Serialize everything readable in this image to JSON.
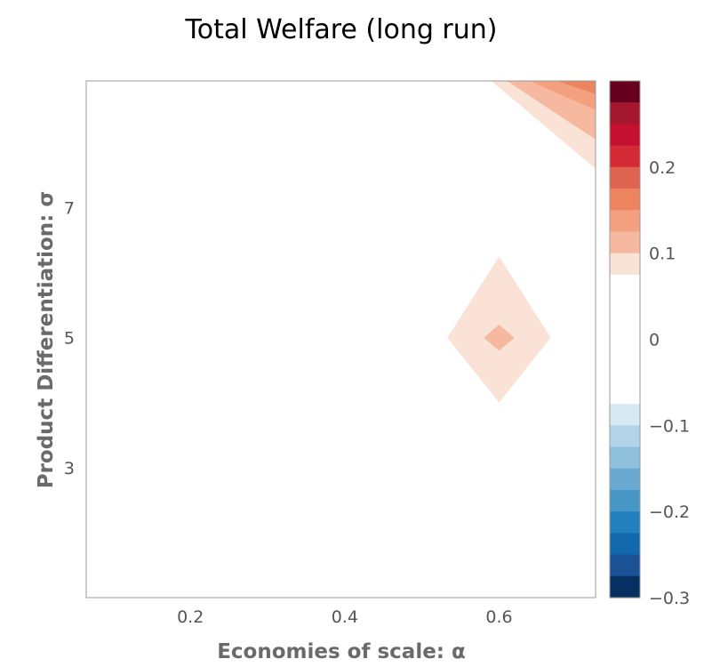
{
  "chart_data": {
    "type": "heatmap",
    "title": "Total Welfare (long run)",
    "xlabel": "Economies of scale: α",
    "ylabel": "Product Differentiation: σ",
    "xlim": [
      0.065,
      0.725
    ],
    "ylim": [
      1.0,
      8.95
    ],
    "x_ticks": [
      "0.2",
      "0.4",
      "0.6"
    ],
    "y_ticks": [
      "3",
      "5",
      "7"
    ],
    "x_tick_values": [
      0.2,
      0.4,
      0.6
    ],
    "y_tick_values": [
      3,
      5,
      7
    ],
    "colorbar": {
      "range": [
        -0.3,
        0.3
      ],
      "tick_labels": [
        "0.2",
        "0.1",
        "0",
        "−0.1",
        "−0.2",
        "−0.3"
      ],
      "tick_values": [
        0.2,
        0.1,
        0,
        -0.1,
        -0.2,
        -0.3
      ],
      "levels": [
        {
          "lo": 0.275,
          "hi": 0.3,
          "color": "#67001f"
        },
        {
          "lo": 0.25,
          "hi": 0.275,
          "color": "#a5172f"
        },
        {
          "lo": 0.225,
          "hi": 0.25,
          "color": "#c5112f"
        },
        {
          "lo": 0.2,
          "hi": 0.225,
          "color": "#d42a35"
        },
        {
          "lo": 0.175,
          "hi": 0.2,
          "color": "#df6450"
        },
        {
          "lo": 0.15,
          "hi": 0.175,
          "color": "#ed8460"
        },
        {
          "lo": 0.125,
          "hi": 0.15,
          "color": "#f3a07f"
        },
        {
          "lo": 0.1,
          "hi": 0.125,
          "color": "#f6b89e"
        },
        {
          "lo": 0.075,
          "hi": 0.1,
          "color": "#fbe2d7"
        },
        {
          "lo": -0.075,
          "hi": 0.075,
          "color": "#ffffff"
        },
        {
          "lo": -0.1,
          "hi": -0.075,
          "color": "#d7e9f3"
        },
        {
          "lo": -0.125,
          "hi": -0.1,
          "color": "#b1d4e8"
        },
        {
          "lo": -0.15,
          "hi": -0.125,
          "color": "#8cc0dc"
        },
        {
          "lo": -0.175,
          "hi": -0.15,
          "color": "#6aaad2"
        },
        {
          "lo": -0.2,
          "hi": -0.175,
          "color": "#4696c6"
        },
        {
          "lo": -0.225,
          "hi": -0.2,
          "color": "#2180bd"
        },
        {
          "lo": -0.25,
          "hi": -0.225,
          "color": "#1268ac"
        },
        {
          "lo": -0.275,
          "hi": -0.25,
          "color": "#1b5295"
        },
        {
          "lo": -0.3,
          "hi": -0.275,
          "color": "#053061"
        }
      ]
    },
    "grid": false,
    "regions": [
      {
        "shape": "polygon",
        "color": "#fbe2d7",
        "points": [
          [
            0.6,
            6.25
          ],
          [
            0.667,
            5.0
          ],
          [
            0.6,
            4.0
          ],
          [
            0.533,
            5.0
          ]
        ]
      },
      {
        "shape": "polygon",
        "color": "#f6b89e",
        "points": [
          [
            0.6,
            5.2
          ],
          [
            0.62,
            5.0
          ],
          [
            0.6,
            4.8
          ],
          [
            0.58,
            5.0
          ]
        ]
      },
      {
        "shape": "polygon",
        "color": "#fbe2d7",
        "points": [
          [
            0.59,
            8.95
          ],
          [
            0.725,
            8.95
          ],
          [
            0.725,
            7.6
          ]
        ]
      },
      {
        "shape": "polygon",
        "color": "#f6b89e",
        "points": [
          [
            0.61,
            8.95
          ],
          [
            0.725,
            8.95
          ],
          [
            0.725,
            8.05
          ]
        ]
      },
      {
        "shape": "polygon",
        "color": "#f3a07f",
        "points": [
          [
            0.64,
            8.95
          ],
          [
            0.725,
            8.95
          ],
          [
            0.725,
            8.5
          ]
        ]
      },
      {
        "shape": "polygon",
        "color": "#ed8460",
        "points": [
          [
            0.675,
            8.95
          ],
          [
            0.725,
            8.95
          ],
          [
            0.725,
            8.75
          ]
        ]
      }
    ]
  }
}
